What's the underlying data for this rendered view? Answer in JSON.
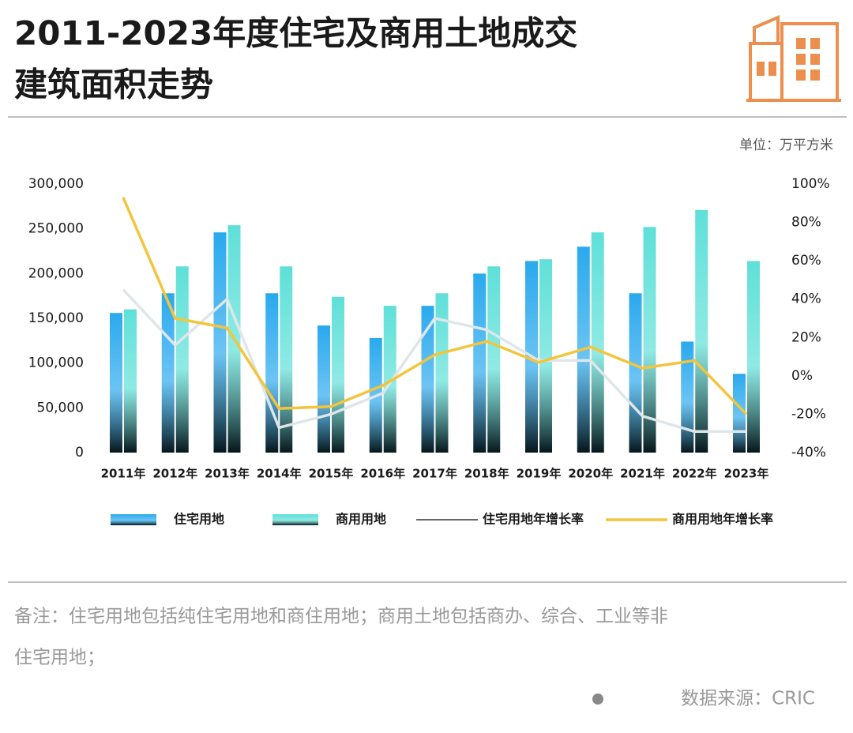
{
  "chart_data": {
    "type": "bar",
    "title": [
      "2011-2023年度住宅及商用土地成交",
      "建筑面积走势"
    ],
    "unit": "单位：万平方米",
    "categories": [
      "2011年",
      "2012年",
      "2013年",
      "2014年",
      "2015年",
      "2016年",
      "2017年",
      "2018年",
      "2019年",
      "2020年",
      "2021年",
      "2022年",
      "2023年"
    ],
    "series": [
      {
        "name": "住宅用地",
        "type": "bar",
        "color": "#2aa9ee",
        "values": [
          156000,
          178000,
          246000,
          178000,
          142000,
          128000,
          164000,
          200000,
          214000,
          230000,
          178000,
          124000,
          88000
        ]
      },
      {
        "name": "商用用地",
        "type": "bar",
        "color": "#5ee0d8",
        "values": [
          160000,
          208000,
          254000,
          208000,
          174000,
          164000,
          178000,
          208000,
          216000,
          246000,
          252000,
          271000,
          214000
        ]
      },
      {
        "name": "住宅用地年增长率",
        "type": "line",
        "axis": "y2",
        "color": "#dfe6ea",
        "values": [
          45,
          16,
          40,
          -27,
          -20,
          -9,
          30,
          24,
          8,
          8,
          -21,
          -29,
          -29
        ]
      },
      {
        "name": "商用用地年增长率",
        "type": "line",
        "axis": "y2",
        "color": "#f2c53d",
        "values": [
          93,
          30,
          25,
          -17,
          -16,
          -5,
          11,
          18,
          7,
          15,
          4,
          8,
          -20
        ]
      }
    ],
    "ylim": [
      0,
      300000
    ],
    "yticks": [
      0,
      {
        "value": 50000,
        "label": "50,000"
      },
      {
        "value": 100000,
        "label": "100,000"
      },
      {
        "value": 150000,
        "label": "150,000"
      },
      {
        "value": 200000,
        "label": "200,000"
      },
      {
        "value": 250000,
        "label": "250,000"
      },
      {
        "value": 300000,
        "label": "300,000"
      }
    ],
    "y2lim": [
      -40,
      100
    ],
    "y2ticks": [
      {
        "value": -40,
        "label": "-40%"
      },
      {
        "value": -20,
        "label": "-20%"
      },
      {
        "value": 0,
        "label": "0%"
      },
      {
        "value": 20,
        "label": "20%"
      },
      {
        "value": 40,
        "label": "40%"
      },
      {
        "value": 60,
        "label": "60%"
      },
      {
        "value": 80,
        "label": "80%"
      },
      {
        "value": 100,
        "label": "100%"
      }
    ]
  },
  "notes": [
    "备注：住宅用地包括纯住宅用地和商住用地；商用土地包括商办、综合、工业等非",
    "住宅用地；"
  ],
  "source": "数据来源：CRIC"
}
